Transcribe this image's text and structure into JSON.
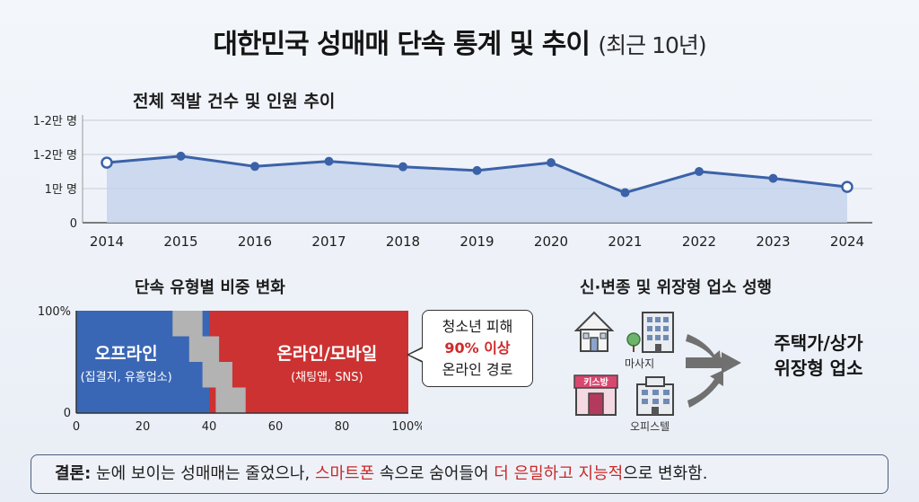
{
  "title": {
    "main": "대한민국 성매매 단속 통계 및 추이",
    "sub": "(최근 10년)"
  },
  "chart_data": [
    {
      "type": "line",
      "title": "전체 적발 건수 및 인원 추이",
      "x": [
        "2014",
        "2015",
        "2016",
        "2017",
        "2018",
        "2019",
        "2020",
        "2021",
        "2022",
        "2023",
        "2024"
      ],
      "series": [
        {
          "values": [
            1.76,
            1.95,
            1.65,
            1.8,
            1.64,
            1.53,
            1.76,
            0.88,
            1.5,
            1.3,
            1.05
          ]
        }
      ],
      "y_tick_values": [
        0,
        1,
        2,
        3
      ],
      "y_tick_labels": [
        "0",
        "1만 명",
        "1-2만 명",
        "1-2만 명"
      ],
      "ylim": [
        0,
        3
      ],
      "grid": true,
      "colors": {
        "line": "#3b62a8",
        "fill": "#c6d3ec"
      }
    },
    {
      "type": "bar",
      "title": "단속 유형별 비중 변화",
      "orientation": "horizontal-stacked",
      "series": [
        {
          "name": "오프라인",
          "value": 40,
          "note": "(집결지, 유흥업소)",
          "color": "#3a67b5"
        },
        {
          "name": "온라인/모바일",
          "value": 60,
          "note": "(채팅앱, SNS)",
          "color": "#cc3232"
        }
      ],
      "x_ticks": [
        "0",
        "20",
        "40",
        "60",
        "80",
        "100%"
      ],
      "y_ticks": [
        "0",
        "100%"
      ],
      "xlim": [
        0,
        100
      ]
    }
  ],
  "callout": {
    "line1": "청소년 피해",
    "line2": "90% 이상",
    "line3": "온라인 경로"
  },
  "flow": {
    "title": "신·변종 및 위장형 업소 성행",
    "icon_labels": [
      "마사지",
      "오피스텔"
    ],
    "sign_text": "키스방",
    "result_line1": "주택가/상가",
    "result_line2": "위장형 업소"
  },
  "conclusion": {
    "lead": "결론:",
    "part1": " 눈에 보이는 성매매는 줄었으나, ",
    "red1": "스마트폰",
    "part2": " 속으로 숨어들어 ",
    "red2": "더 은밀하고 지능적",
    "part3": "으로 변화함."
  }
}
